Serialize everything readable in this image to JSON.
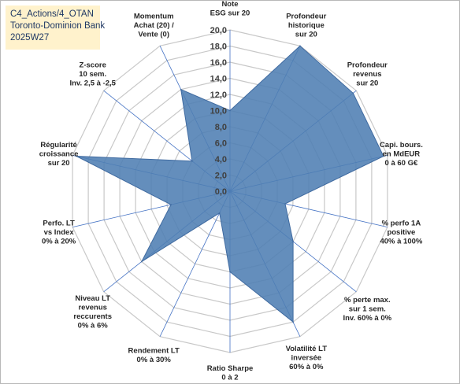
{
  "title_box": {
    "line1": "C4_Actions/4_OTAN",
    "line2": "Toronto-Dominion Bank",
    "line3": "2025W27"
  },
  "colors": {
    "fill": "#4f7eb3",
    "stroke": "#3f6aa0",
    "grid": "#c8c8c8",
    "spoke": "#4472c4",
    "title_bg": "#fff2cc"
  },
  "chart_data": {
    "type": "radar",
    "rmin": 0,
    "rmax": 20,
    "ticks": [
      "0,0",
      "2,0",
      "4,0",
      "6,0",
      "8,0",
      "10,0",
      "12,0",
      "14,0",
      "16,0",
      "18,0",
      "20,0"
    ],
    "axes": [
      {
        "lines": [
          "Note",
          "ESG sur 20"
        ]
      },
      {
        "lines": [
          "Profondeur",
          "historique",
          "sur 20"
        ]
      },
      {
        "lines": [
          "Profondeur",
          "revenus",
          "sur 20"
        ]
      },
      {
        "lines": [
          "Capi. bours.",
          "en MdEUR",
          "0 à 60 G€"
        ]
      },
      {
        "lines": [
          "% perfo 1A",
          "positive",
          "40% à 100%"
        ]
      },
      {
        "lines": [
          "% perte max.",
          "sur 1 sem.",
          "Inv. 60% à 0%"
        ]
      },
      {
        "lines": [
          "Volatilité LT",
          "inversée",
          "60% à 0%"
        ]
      },
      {
        "lines": [
          "Ratio Sharpe",
          "0 à 2"
        ]
      },
      {
        "lines": [
          "Rendement LT",
          "0% à 30%"
        ]
      },
      {
        "lines": [
          "Niveau LT",
          "revenus",
          "reccurents",
          "0% à 6%"
        ]
      },
      {
        "lines": [
          "Perfo. LT",
          "vs Index",
          "0% à 20%"
        ]
      },
      {
        "lines": [
          "Régularité",
          "croissance",
          "sur 20"
        ]
      },
      {
        "lines": [
          "Z-score",
          "10 sem.",
          "Inv. 2,5 à -2,5"
        ]
      },
      {
        "lines": [
          "Momentum",
          "Achat (20) /",
          "Vente (0)"
        ]
      }
    ],
    "values": [
      10,
      20,
      19.5,
      19.5,
      7,
      10,
      18,
      10,
      3,
      14,
      7.5,
      19.5,
      6,
      14
    ]
  }
}
